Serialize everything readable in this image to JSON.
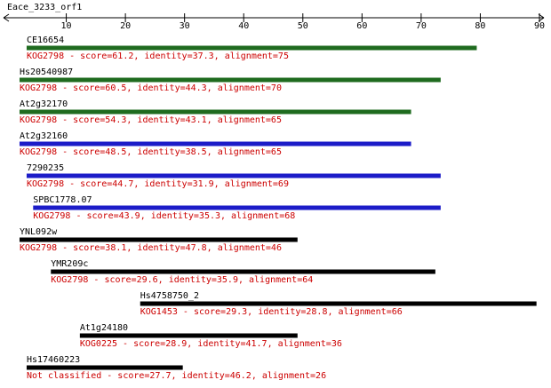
{
  "chart_data": {
    "type": "alignment",
    "title": "Eace_3233_orf1",
    "xlim": [
      0,
      90
    ],
    "xticks": [
      10,
      20,
      30,
      40,
      50,
      60,
      70,
      80,
      90
    ],
    "hits": [
      {
        "name": "CE16654",
        "description": "KOG2798 - score=61.2, identity=37.3, alignment=75",
        "start": 3.3,
        "end": 79.4,
        "color": "#1f6b1f"
      },
      {
        "name": "Hs20540987",
        "description": "KOG2798 - score=60.5, identity=44.3, alignment=70",
        "start": 2.1,
        "end": 73.3,
        "color": "#1f6b1f"
      },
      {
        "name": "At2g32170",
        "description": "KOG2798 - score=54.3, identity=43.1, alignment=65",
        "start": 2.1,
        "end": 68.3,
        "color": "#1f6b1f"
      },
      {
        "name": "At2g32160",
        "description": "KOG2798 - score=48.5, identity=38.5, alignment=65",
        "start": 2.1,
        "end": 68.3,
        "color": "#1c1cc8"
      },
      {
        "name": "7290235",
        "description": "KOG2798 - score=44.7, identity=31.9, alignment=69",
        "start": 3.3,
        "end": 73.3,
        "color": "#1c1cc8"
      },
      {
        "name": "SPBC1778.07",
        "description": "KOG2798 - score=43.9, identity=35.3, alignment=68",
        "start": 4.4,
        "end": 73.3,
        "color": "#1c1cc8"
      },
      {
        "name": "YNL092w",
        "description": "KOG2798 - score=38.1, identity=47.8, alignment=46",
        "start": 2.1,
        "end": 49.1,
        "color": "#000000"
      },
      {
        "name": "YMR209c",
        "description": "KOG2798 - score=29.6, identity=35.9, alignment=64",
        "start": 7.4,
        "end": 72.4,
        "color": "#000000"
      },
      {
        "name": "Hs4758750_2",
        "description": "KOG1453 - score=29.3, identity=28.8, alignment=66",
        "start": 22.5,
        "end": 89.5,
        "color": "#000000"
      },
      {
        "name": "At1g24180",
        "description": "KOG0225 - score=28.9, identity=41.7, alignment=36",
        "start": 12.3,
        "end": 49.1,
        "color": "#000000"
      },
      {
        "name": "Hs17460223",
        "description": "Not classified - score=27.7, identity=46.2, alignment=26",
        "start": 3.3,
        "end": 29.7,
        "color": "#000000"
      }
    ]
  }
}
